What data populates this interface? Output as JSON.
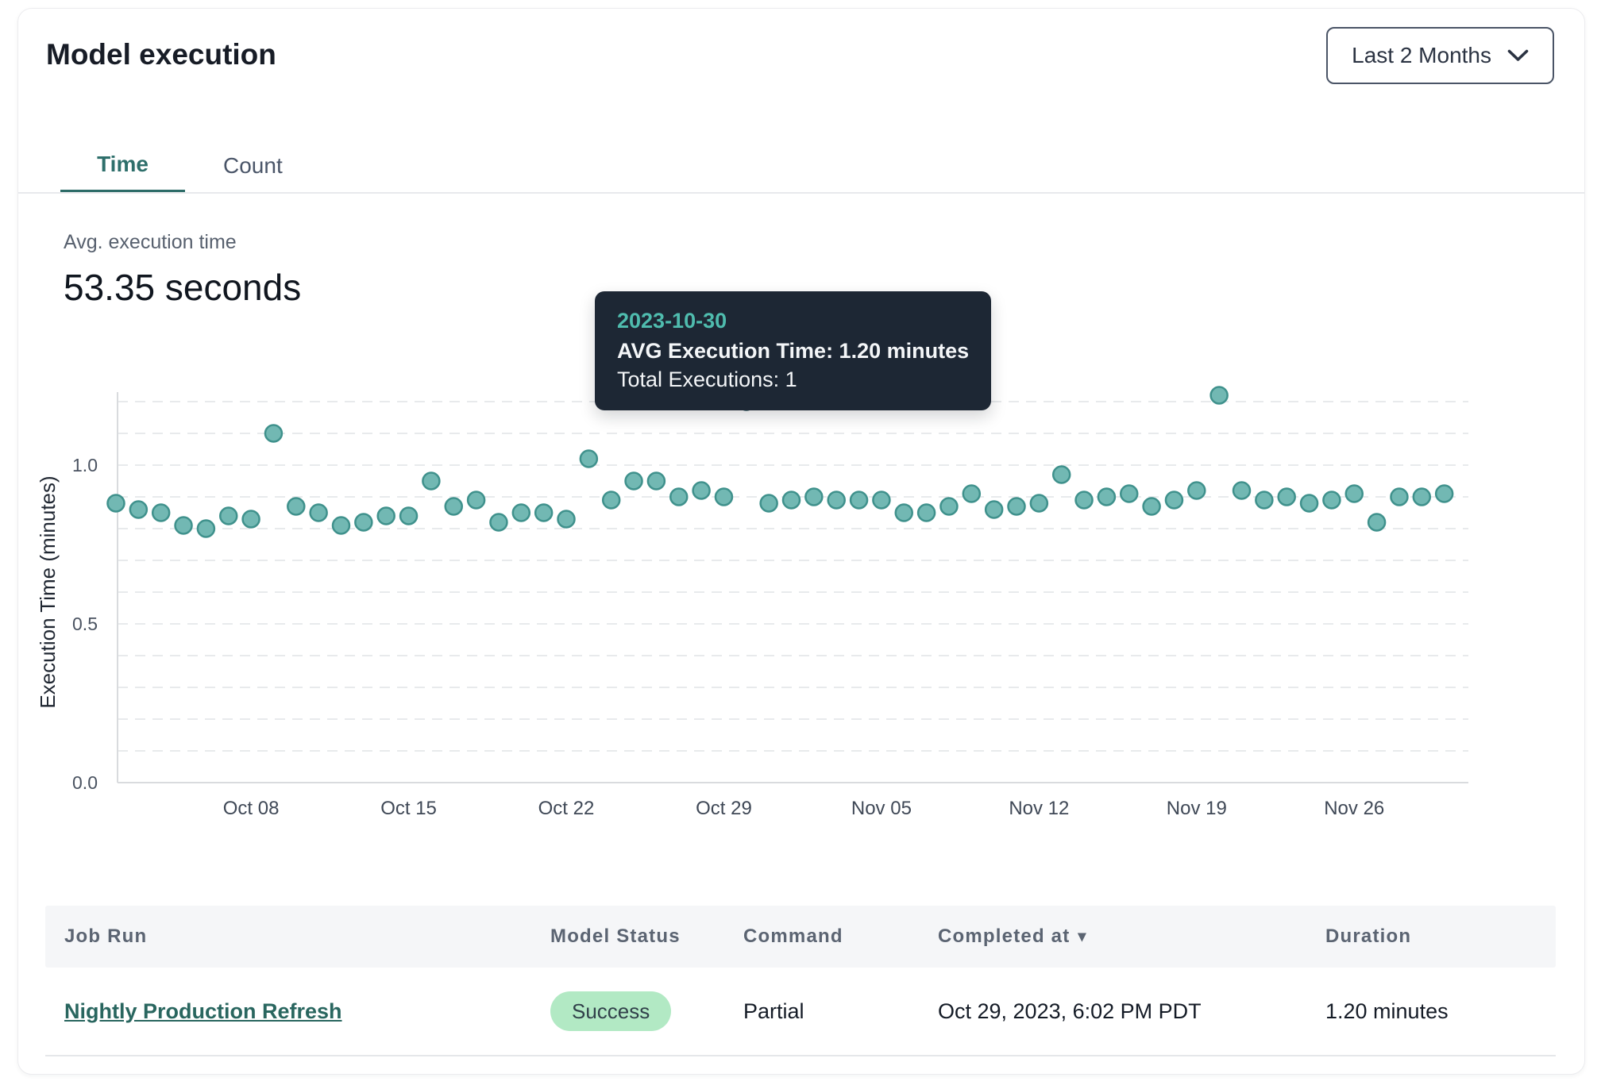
{
  "panel": {
    "title": "Model execution"
  },
  "range_selector": {
    "label": "Last 2 Months",
    "icon": "chevron-down-icon"
  },
  "tabs": [
    {
      "label": "Time",
      "active": true
    },
    {
      "label": "Count",
      "active": false
    }
  ],
  "stat": {
    "label": "Avg. execution time",
    "value": "53.35 seconds"
  },
  "tooltip": {
    "date": "2023-10-30",
    "avg_line": "AVG Execution Time: 1.20 minutes",
    "total_line": "Total Executions: 1"
  },
  "chart_data": {
    "type": "scatter",
    "ylabel": "Execution Time (minutes)",
    "ylim": [
      0,
      1.25
    ],
    "grid_step": 0.1,
    "grid_max": 1.2,
    "grid_on": true,
    "yticks": [
      {
        "value": 0.0,
        "label": "0.0"
      },
      {
        "value": 0.5,
        "label": "0.5"
      },
      {
        "value": 1.0,
        "label": "1.0"
      }
    ],
    "xticks": [
      {
        "label": "Oct 08",
        "index": 6
      },
      {
        "label": "Oct 15",
        "index": 13
      },
      {
        "label": "Oct 22",
        "index": 20
      },
      {
        "label": "Oct 29",
        "index": 27
      },
      {
        "label": "Nov 05",
        "index": 34
      },
      {
        "label": "Nov 12",
        "index": 41
      },
      {
        "label": "Nov 19",
        "index": 48
      },
      {
        "label": "Nov 26",
        "index": 55
      }
    ],
    "x_dates": [
      "2023-10-02",
      "2023-10-03",
      "2023-10-04",
      "2023-10-05",
      "2023-10-06",
      "2023-10-07",
      "2023-10-08",
      "2023-10-09",
      "2023-10-10",
      "2023-10-11",
      "2023-10-12",
      "2023-10-13",
      "2023-10-14",
      "2023-10-15",
      "2023-10-16",
      "2023-10-17",
      "2023-10-18",
      "2023-10-19",
      "2023-10-20",
      "2023-10-21",
      "2023-10-22",
      "2023-10-23",
      "2023-10-24",
      "2023-10-25",
      "2023-10-26",
      "2023-10-27",
      "2023-10-28",
      "2023-10-29",
      "2023-10-30",
      "2023-10-31",
      "2023-11-01",
      "2023-11-02",
      "2023-11-03",
      "2023-11-04",
      "2023-11-05",
      "2023-11-06",
      "2023-11-07",
      "2023-11-08",
      "2023-11-09",
      "2023-11-10",
      "2023-11-11",
      "2023-11-12",
      "2023-11-13",
      "2023-11-14",
      "2023-11-15",
      "2023-11-16",
      "2023-11-17",
      "2023-11-18",
      "2023-11-19",
      "2023-11-20",
      "2023-11-21",
      "2023-11-22",
      "2023-11-23",
      "2023-11-24",
      "2023-11-25",
      "2023-11-26",
      "2023-11-27",
      "2023-11-28",
      "2023-11-29",
      "2023-11-30"
    ],
    "values": [
      0.88,
      0.86,
      0.85,
      0.81,
      0.8,
      0.84,
      0.83,
      1.1,
      0.87,
      0.85,
      0.81,
      0.82,
      0.84,
      0.84,
      0.95,
      0.87,
      0.89,
      0.82,
      0.85,
      0.85,
      0.83,
      1.02,
      0.89,
      0.95,
      0.95,
      0.9,
      0.92,
      0.9,
      1.2,
      0.88,
      0.89,
      0.9,
      0.89,
      0.89,
      0.89,
      0.85,
      0.85,
      0.87,
      0.91,
      0.86,
      0.87,
      0.88,
      0.97,
      0.89,
      0.9,
      0.91,
      0.87,
      0.89,
      0.92,
      1.22,
      0.92,
      0.89,
      0.9,
      0.88,
      0.89,
      0.91,
      0.82,
      0.9,
      0.9,
      0.91
    ],
    "selected_index": 28,
    "series_name": "AVG Execution Time",
    "legend_position": "none"
  },
  "table": {
    "columns": [
      {
        "label": "Job Run",
        "sorted": ""
      },
      {
        "label": "Model Status",
        "sorted": ""
      },
      {
        "label": "Command",
        "sorted": ""
      },
      {
        "label": "Completed at",
        "sorted": "desc"
      },
      {
        "label": "Duration",
        "sorted": ""
      }
    ],
    "sort_caret": "▾",
    "rows": [
      {
        "job_run": "Nightly Production Refresh",
        "model_status": "Success",
        "command": "Partial",
        "completed_at": "Oct 29, 2023, 6:02 PM PDT",
        "duration": "1.20 minutes"
      }
    ]
  },
  "colors": {
    "accent_teal": "#2e6f6b",
    "dot_fill": "#72b8b3",
    "dot_stroke": "#3f918c",
    "selected_dot_fill": "#35707b",
    "selected_dot_stroke": "#2c5b64",
    "grid": "#e8eaec",
    "axis": "#d9dbde",
    "ytick_text": "#4a5361",
    "xtick_text": "#3f4856",
    "axis_title_text": "#1f2631",
    "tooltip_bg": "#1d2734",
    "tooltip_date": "#4fbcae",
    "success_bg": "#b2e9c4",
    "success_text": "#31404a",
    "link": "#29665f"
  }
}
